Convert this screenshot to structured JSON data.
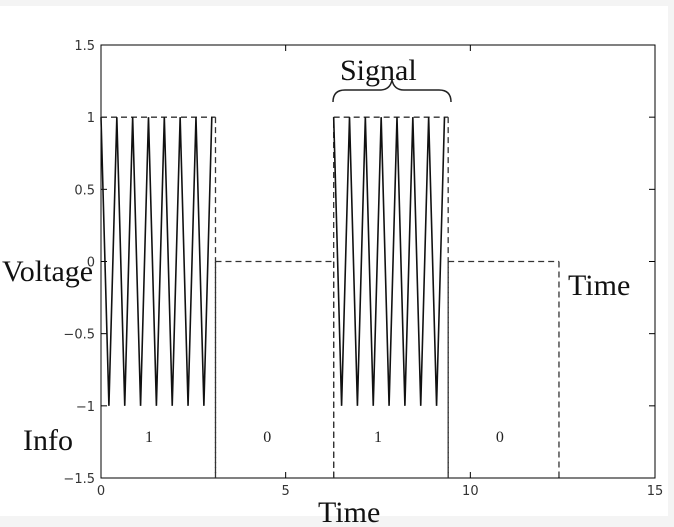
{
  "chart_data": {
    "type": "line",
    "ylabel": "Voltage",
    "xlabel": "Time",
    "ylim": [
      -1.5,
      1.5
    ],
    "xlim": [
      0,
      15
    ],
    "yticks": [
      "1.5",
      "1",
      "0.5",
      "0",
      "−0.5",
      "−1",
      "−1.5"
    ],
    "xticks": [
      "0",
      "5",
      "10",
      "15"
    ],
    "annotations": {
      "signal": "Signal",
      "time_right": "Time",
      "info": "Info"
    },
    "bits": [
      {
        "label": "1",
        "x": 1.3
      },
      {
        "label": "0",
        "x": 4.5
      },
      {
        "label": "1",
        "x": 7.5
      },
      {
        "label": "0",
        "x": 10.8
      }
    ],
    "series": [
      {
        "style": "solid",
        "segments": [
          {
            "x_start": 0,
            "x_end": 3.0,
            "peaks": 7,
            "amplitude": 1
          },
          {
            "x_start": 6.3,
            "x_end": 9.3,
            "peaks": 7,
            "amplitude": 1
          }
        ]
      },
      {
        "style": "dashed",
        "points": [
          [
            0,
            1
          ],
          [
            3.1,
            1
          ],
          [
            3.1,
            -1.5
          ],
          [
            3.1,
            0
          ],
          [
            6.3,
            0
          ],
          [
            6.3,
            -1.5
          ],
          [
            6.3,
            1
          ],
          [
            9.4,
            1
          ],
          [
            9.4,
            -1.5
          ],
          [
            9.4,
            0
          ],
          [
            12.4,
            0
          ],
          [
            12.4,
            -1.5
          ]
        ]
      }
    ],
    "grid": false
  }
}
